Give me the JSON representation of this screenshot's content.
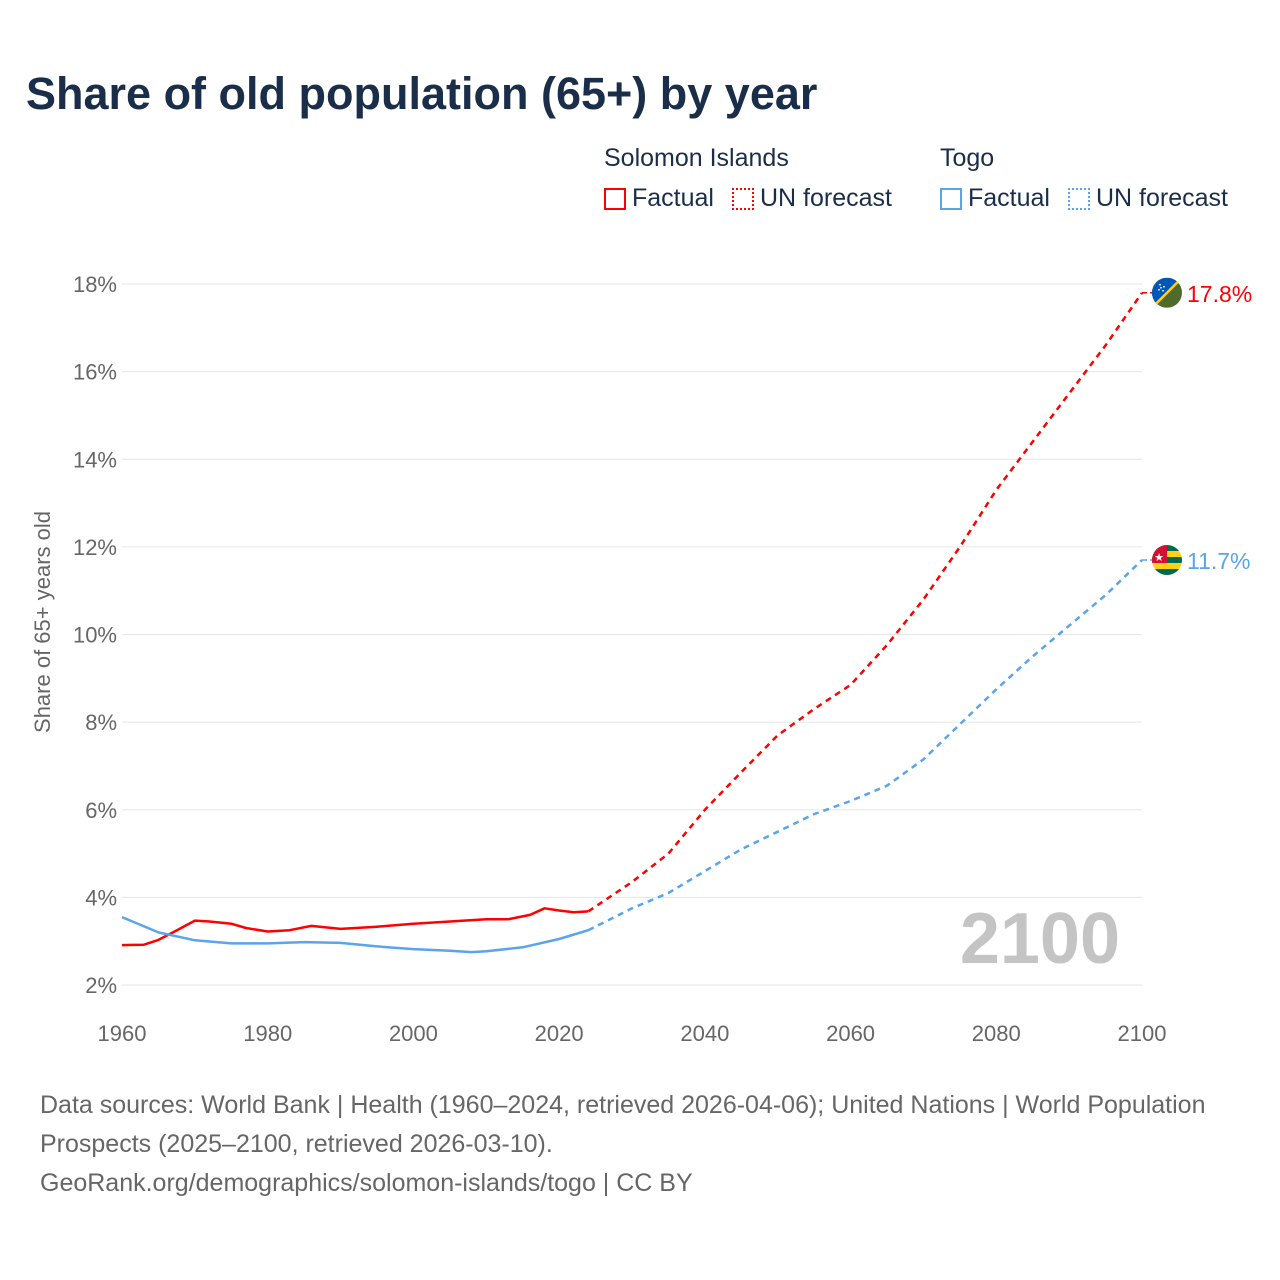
{
  "title": "Share of old population (65+) by year",
  "legend": {
    "groups": [
      {
        "name": "Solomon Islands",
        "color": "#ff0000",
        "factual_label": "Factual",
        "forecast_label": "UN forecast"
      },
      {
        "name": "Togo",
        "color": "#5aa4ec",
        "factual_label": "Factual",
        "forecast_label": "UN forecast"
      }
    ]
  },
  "year_watermark": "2100",
  "footer": {
    "sources": "Data sources: World Bank | Health (1960–2024, retrieved 2026-04-06); United Nations | World Population Prospects (2025–2100, retrieved 2026-03-10).",
    "credit": "GeoRank.org/demographics/solomon-islands/togo | CC BY"
  },
  "chart_data": {
    "type": "line",
    "title": "Share of old population (65+) by year",
    "xlabel": "",
    "ylabel": "Share of 65+ years old",
    "xlim": [
      1960,
      2100
    ],
    "ylim": [
      2,
      18
    ],
    "xticks": [
      "1960",
      "1980",
      "2000",
      "2020",
      "2040",
      "2060",
      "2080",
      "2100"
    ],
    "yticks": [
      "2%",
      "4%",
      "6%",
      "8%",
      "10%",
      "12%",
      "14%",
      "16%",
      "18%"
    ],
    "grid": true,
    "legend_position": "top-right",
    "series": [
      {
        "name": "Solomon Islands",
        "color": "#ff0000",
        "end_label": "17.8%",
        "flag": "solomon-islands",
        "factual": [
          [
            1960,
            2.91
          ],
          [
            1963,
            2.92
          ],
          [
            1965,
            3.03
          ],
          [
            1967,
            3.2
          ],
          [
            1970,
            3.47
          ],
          [
            1972,
            3.45
          ],
          [
            1975,
            3.4
          ],
          [
            1977,
            3.3
          ],
          [
            1980,
            3.22
          ],
          [
            1983,
            3.25
          ],
          [
            1986,
            3.35
          ],
          [
            1990,
            3.28
          ],
          [
            1995,
            3.33
          ],
          [
            2000,
            3.4
          ],
          [
            2005,
            3.45
          ],
          [
            2010,
            3.5
          ],
          [
            2013,
            3.5
          ],
          [
            2016,
            3.6
          ],
          [
            2018,
            3.75
          ],
          [
            2020,
            3.7
          ],
          [
            2022,
            3.66
          ],
          [
            2024,
            3.68
          ]
        ],
        "forecast": [
          [
            2024,
            3.68
          ],
          [
            2030,
            4.35
          ],
          [
            2035,
            5.0
          ],
          [
            2040,
            6.0
          ],
          [
            2045,
            6.86
          ],
          [
            2050,
            7.7
          ],
          [
            2055,
            8.3
          ],
          [
            2060,
            8.85
          ],
          [
            2065,
            9.76
          ],
          [
            2070,
            10.8
          ],
          [
            2075,
            12.0
          ],
          [
            2080,
            13.3
          ],
          [
            2085,
            14.4
          ],
          [
            2090,
            15.5
          ],
          [
            2095,
            16.6
          ],
          [
            2100,
            17.8
          ]
        ]
      },
      {
        "name": "Togo",
        "color": "#5aa4ec",
        "end_label": "11.7%",
        "flag": "togo",
        "factual": [
          [
            1960,
            3.55
          ],
          [
            1965,
            3.2
          ],
          [
            1970,
            3.02
          ],
          [
            1975,
            2.95
          ],
          [
            1980,
            2.95
          ],
          [
            1985,
            2.98
          ],
          [
            1990,
            2.96
          ],
          [
            1995,
            2.88
          ],
          [
            2000,
            2.82
          ],
          [
            2005,
            2.78
          ],
          [
            2008,
            2.75
          ],
          [
            2010,
            2.77
          ],
          [
            2015,
            2.86
          ],
          [
            2020,
            3.05
          ],
          [
            2024,
            3.25
          ]
        ],
        "forecast": [
          [
            2024,
            3.25
          ],
          [
            2030,
            3.75
          ],
          [
            2035,
            4.1
          ],
          [
            2040,
            4.6
          ],
          [
            2045,
            5.1
          ],
          [
            2050,
            5.5
          ],
          [
            2055,
            5.9
          ],
          [
            2060,
            6.2
          ],
          [
            2065,
            6.55
          ],
          [
            2070,
            7.15
          ],
          [
            2075,
            7.95
          ],
          [
            2080,
            8.75
          ],
          [
            2085,
            9.5
          ],
          [
            2090,
            10.2
          ],
          [
            2095,
            10.9
          ],
          [
            2100,
            11.7
          ]
        ]
      }
    ]
  }
}
